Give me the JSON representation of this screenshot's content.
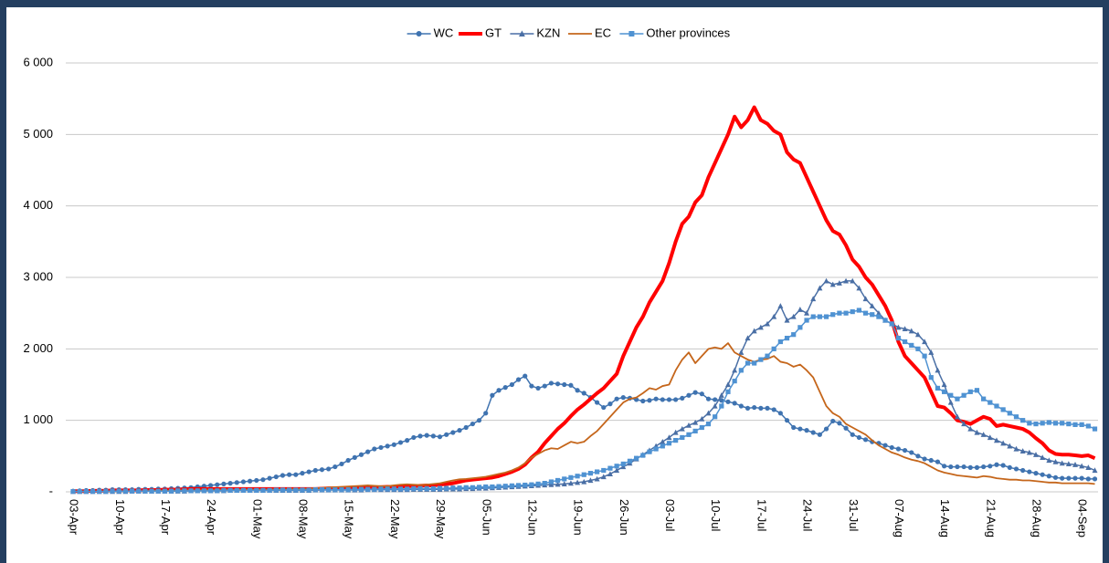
{
  "chart_data": {
    "type": "line",
    "categories": [
      "03-Apr",
      null,
      null,
      null,
      null,
      null,
      null,
      "10-Apr",
      null,
      null,
      null,
      null,
      null,
      null,
      "17-Apr",
      null,
      null,
      null,
      null,
      null,
      null,
      "24-Apr",
      null,
      null,
      null,
      null,
      null,
      null,
      "01-May",
      null,
      null,
      null,
      null,
      null,
      null,
      "08-May",
      null,
      null,
      null,
      null,
      null,
      null,
      "15-May",
      null,
      null,
      null,
      null,
      null,
      null,
      "22-May",
      null,
      null,
      null,
      null,
      null,
      null,
      "29-May",
      null,
      null,
      null,
      null,
      null,
      null,
      "05-Jun",
      null,
      null,
      null,
      null,
      null,
      null,
      "12-Jun",
      null,
      null,
      null,
      null,
      null,
      null,
      "19-Jun",
      null,
      null,
      null,
      null,
      null,
      null,
      "26-Jun",
      null,
      null,
      null,
      null,
      null,
      null,
      "03-Jul",
      null,
      null,
      null,
      null,
      null,
      null,
      "10-Jul",
      null,
      null,
      null,
      null,
      null,
      null,
      "17-Jul",
      null,
      null,
      null,
      null,
      null,
      null,
      "24-Jul",
      null,
      null,
      null,
      null,
      null,
      null,
      "31-Jul",
      null,
      null,
      null,
      null,
      null,
      null,
      "07-Aug",
      null,
      null,
      null,
      null,
      null,
      null,
      "14-Aug",
      null,
      null,
      null,
      null,
      null,
      null,
      "21-Aug",
      null,
      null,
      null,
      null,
      null,
      null,
      "28-Aug",
      null,
      null,
      null,
      null,
      null,
      null,
      "04-Sep",
      null,
      null
    ],
    "series": [
      {
        "name": "WC",
        "color": "#3f73b0",
        "marker": "circle",
        "width": 1.5,
        "values": [
          10,
          15,
          20,
          20,
          25,
          25,
          30,
          30,
          30,
          30,
          35,
          35,
          35,
          40,
          40,
          45,
          50,
          55,
          60,
          70,
          80,
          90,
          100,
          110,
          120,
          130,
          140,
          150,
          160,
          170,
          190,
          210,
          230,
          240,
          240,
          260,
          280,
          300,
          310,
          320,
          350,
          390,
          440,
          480,
          520,
          560,
          600,
          620,
          640,
          660,
          690,
          720,
          760,
          780,
          790,
          780,
          770,
          800,
          830,
          860,
          900,
          950,
          1000,
          1100,
          1350,
          1420,
          1460,
          1500,
          1570,
          1620,
          1480,
          1450,
          1480,
          1520,
          1510,
          1500,
          1490,
          1420,
          1380,
          1320,
          1250,
          1180,
          1230,
          1300,
          1320,
          1310,
          1290,
          1270,
          1280,
          1300,
          1290,
          1290,
          1290,
          1310,
          1350,
          1390,
          1370,
          1300,
          1290,
          1280,
          1260,
          1240,
          1200,
          1170,
          1180,
          1170,
          1170,
          1150,
          1100,
          1000,
          900,
          880,
          860,
          830,
          800,
          880,
          990,
          960,
          890,
          800,
          760,
          730,
          700,
          680,
          650,
          620,
          600,
          580,
          550,
          500,
          460,
          440,
          420,
          360,
          350,
          350,
          350,
          340,
          340,
          350,
          360,
          380,
          370,
          340,
          320,
          300,
          280,
          260,
          240,
          220,
          200,
          190,
          190,
          190,
          190,
          180,
          180
        ]
      },
      {
        "name": "GT",
        "color": "#ff0000",
        "marker": "none",
        "width": 4,
        "values": [
          10,
          10,
          10,
          15,
          15,
          15,
          20,
          20,
          20,
          20,
          20,
          25,
          25,
          25,
          30,
          30,
          30,
          35,
          40,
          40,
          40,
          40,
          40,
          40,
          40,
          40,
          40,
          40,
          40,
          40,
          40,
          40,
          40,
          40,
          40,
          40,
          40,
          40,
          45,
          50,
          50,
          50,
          50,
          55,
          60,
          60,
          60,
          65,
          70,
          70,
          75,
          80,
          80,
          85,
          90,
          90,
          100,
          110,
          120,
          140,
          160,
          170,
          180,
          190,
          200,
          220,
          250,
          280,
          320,
          380,
          480,
          560,
          680,
          780,
          880,
          960,
          1060,
          1150,
          1220,
          1300,
          1380,
          1450,
          1550,
          1650,
          1900,
          2100,
          2300,
          2450,
          2650,
          2800,
          2950,
          3200,
          3500,
          3750,
          3850,
          4050,
          4150,
          4400,
          4600,
          4800,
          5000,
          5250,
          5100,
          5200,
          5380,
          5200,
          5150,
          5050,
          5000,
          4750,
          4650,
          4600,
          4400,
          4200,
          4000,
          3800,
          3650,
          3600,
          3450,
          3250,
          3150,
          3000,
          2900,
          2750,
          2600,
          2400,
          2100,
          1900,
          1800,
          1700,
          1600,
          1400,
          1200,
          1180,
          1100,
          1000,
          980,
          950,
          1000,
          1050,
          1020,
          920,
          940,
          920,
          900,
          880,
          830,
          750,
          680,
          580,
          530,
          520,
          520,
          510,
          500,
          510,
          470
        ]
      },
      {
        "name": "KZN",
        "color": "#4a6fa5",
        "marker": "triangle",
        "width": 1.5,
        "values": [
          5,
          5,
          5,
          5,
          5,
          5,
          5,
          5,
          5,
          10,
          10,
          10,
          10,
          10,
          10,
          10,
          10,
          10,
          15,
          15,
          15,
          15,
          15,
          15,
          20,
          20,
          20,
          20,
          20,
          20,
          20,
          20,
          20,
          20,
          20,
          20,
          20,
          25,
          25,
          25,
          25,
          25,
          25,
          25,
          25,
          30,
          30,
          30,
          30,
          30,
          30,
          30,
          35,
          35,
          35,
          35,
          35,
          40,
          40,
          40,
          45,
          45,
          50,
          50,
          55,
          60,
          65,
          70,
          75,
          80,
          85,
          90,
          95,
          100,
          105,
          110,
          120,
          130,
          140,
          160,
          180,
          210,
          250,
          300,
          350,
          400,
          460,
          520,
          580,
          640,
          700,
          760,
          830,
          880,
          930,
          970,
          1020,
          1100,
          1200,
          1350,
          1500,
          1700,
          1950,
          2150,
          2250,
          2300,
          2350,
          2450,
          2600,
          2400,
          2450,
          2550,
          2500,
          2700,
          2850,
          2950,
          2900,
          2920,
          2950,
          2950,
          2850,
          2700,
          2600,
          2500,
          2400,
          2350,
          2300,
          2280,
          2250,
          2200,
          2100,
          1950,
          1700,
          1500,
          1250,
          1050,
          950,
          880,
          830,
          800,
          760,
          720,
          680,
          640,
          600,
          570,
          550,
          520,
          480,
          440,
          420,
          400,
          390,
          380,
          360,
          340,
          300
        ]
      },
      {
        "name": "EC",
        "color": "#c5661b",
        "marker": "none",
        "width": 1.8,
        "values": [
          5,
          5,
          5,
          5,
          5,
          5,
          5,
          10,
          10,
          10,
          10,
          10,
          15,
          15,
          15,
          15,
          20,
          20,
          20,
          20,
          25,
          25,
          25,
          25,
          25,
          25,
          30,
          30,
          30,
          30,
          30,
          35,
          35,
          35,
          40,
          40,
          45,
          50,
          55,
          60,
          65,
          70,
          75,
          80,
          85,
          90,
          85,
          80,
          80,
          90,
          100,
          105,
          100,
          95,
          100,
          110,
          120,
          140,
          160,
          175,
          180,
          190,
          200,
          210,
          230,
          250,
          270,
          300,
          340,
          400,
          480,
          530,
          580,
          610,
          600,
          650,
          700,
          680,
          700,
          780,
          850,
          950,
          1050,
          1150,
          1250,
          1300,
          1320,
          1380,
          1450,
          1430,
          1480,
          1500,
          1700,
          1850,
          1950,
          1800,
          1900,
          2000,
          2020,
          2000,
          2080,
          1950,
          1900,
          1850,
          1820,
          1850,
          1860,
          1900,
          1820,
          1800,
          1750,
          1780,
          1700,
          1600,
          1400,
          1200,
          1100,
          1050,
          950,
          900,
          850,
          800,
          720,
          650,
          600,
          550,
          520,
          480,
          450,
          430,
          400,
          350,
          300,
          270,
          250,
          230,
          220,
          210,
          200,
          220,
          210,
          190,
          180,
          170,
          170,
          160,
          160,
          150,
          140,
          130,
          130,
          120,
          120,
          120,
          120,
          120,
          110
        ]
      },
      {
        "name": "Other provinces",
        "color": "#4f92d2",
        "marker": "square",
        "width": 1.5,
        "values": [
          5,
          5,
          5,
          5,
          5,
          5,
          10,
          10,
          10,
          10,
          10,
          10,
          10,
          10,
          10,
          10,
          15,
          15,
          15,
          15,
          15,
          15,
          15,
          20,
          20,
          20,
          20,
          20,
          20,
          20,
          20,
          25,
          25,
          25,
          25,
          25,
          25,
          30,
          30,
          30,
          30,
          30,
          30,
          35,
          35,
          35,
          35,
          40,
          40,
          40,
          40,
          40,
          45,
          45,
          45,
          45,
          50,
          50,
          55,
          55,
          60,
          60,
          65,
          70,
          70,
          75,
          80,
          85,
          90,
          95,
          100,
          110,
          120,
          140,
          160,
          180,
          200,
          220,
          240,
          260,
          280,
          300,
          330,
          360,
          390,
          430,
          470,
          510,
          560,
          600,
          640,
          680,
          720,
          760,
          800,
          850,
          900,
          950,
          1050,
          1200,
          1400,
          1550,
          1700,
          1800,
          1800,
          1850,
          1900,
          2000,
          2100,
          2150,
          2200,
          2300,
          2400,
          2450,
          2450,
          2450,
          2480,
          2500,
          2500,
          2520,
          2540,
          2500,
          2480,
          2450,
          2400,
          2350,
          2150,
          2100,
          2050,
          2000,
          1900,
          1600,
          1450,
          1400,
          1350,
          1300,
          1350,
          1400,
          1420,
          1300,
          1250,
          1200,
          1150,
          1100,
          1050,
          1000,
          960,
          950,
          960,
          970,
          960,
          960,
          950,
          940,
          940,
          920,
          880
        ]
      }
    ],
    "ylim": [
      0,
      6000
    ],
    "yticks": [
      {
        "value": 0,
        "label": "-"
      },
      {
        "value": 1000,
        "label": "1 000"
      },
      {
        "value": 2000,
        "label": "2 000"
      },
      {
        "value": 3000,
        "label": "3 000"
      },
      {
        "value": 4000,
        "label": "4 000"
      },
      {
        "value": 5000,
        "label": "5 000"
      },
      {
        "value": 6000,
        "label": "6 000"
      }
    ],
    "grid": true,
    "legend": "top"
  }
}
